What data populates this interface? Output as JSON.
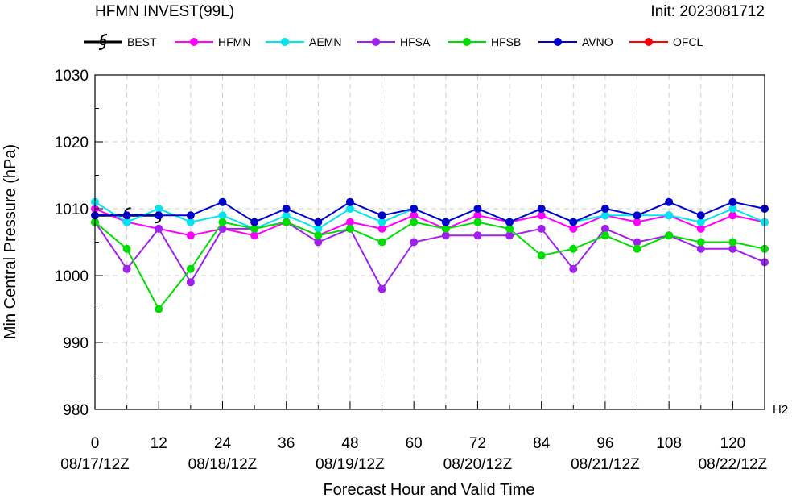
{
  "chart_data": {
    "type": "line",
    "title": "HFMN INVEST(99L)",
    "init_label": "Init: 2023081712",
    "corner_label": "H2",
    "xlabel": "Forecast Hour and Valid Time",
    "ylabel": "Min Central Pressure (hPa)",
    "xlim": [
      0,
      126
    ],
    "ylim": [
      980,
      1030
    ],
    "x_ticks": [
      0,
      12,
      24,
      36,
      48,
      60,
      72,
      84,
      96,
      108,
      120
    ],
    "x_date_labels": [
      {
        "x": 0,
        "label": "08/17/12Z"
      },
      {
        "x": 24,
        "label": "08/18/12Z"
      },
      {
        "x": 48,
        "label": "08/19/12Z"
      },
      {
        "x": 72,
        "label": "08/20/12Z"
      },
      {
        "x": 96,
        "label": "08/21/12Z"
      },
      {
        "x": 120,
        "label": "08/22/12Z"
      }
    ],
    "y_ticks": [
      980,
      990,
      1000,
      1010,
      1020,
      1030
    ],
    "grid": true,
    "legend_position": "top",
    "series": [
      {
        "name": "BEST",
        "color": "#000000",
        "marker": "hurricane-symbol",
        "x": [
          0,
          6,
          12
        ],
        "values": [
          1009,
          1009,
          1009
        ]
      },
      {
        "name": "HFMN",
        "color": "#ff00ff",
        "x": [
          0,
          6,
          12,
          18,
          24,
          30,
          36,
          42,
          48,
          54,
          60,
          66,
          72,
          78,
          84,
          90,
          96,
          102,
          108,
          114,
          120,
          126
        ],
        "values": [
          1010,
          1008,
          1007,
          1006,
          1007,
          1006,
          1008,
          1006,
          1008,
          1007,
          1009,
          1007,
          1009,
          1008,
          1009,
          1007,
          1009,
          1008,
          1009,
          1007,
          1009,
          1008
        ]
      },
      {
        "name": "AEMN",
        "color": "#00e5ee",
        "x": [
          0,
          6,
          12,
          18,
          24,
          30,
          36,
          42,
          48,
          54,
          60,
          66,
          72,
          78,
          84,
          90,
          96,
          102,
          108,
          114,
          120,
          126
        ],
        "values": [
          1011,
          1008,
          1010,
          1008,
          1009,
          1007,
          1009,
          1007,
          1010,
          1008,
          1010,
          1008,
          1010,
          1008,
          1010,
          1008,
          1009,
          1009,
          1009,
          1008,
          1010,
          1008
        ]
      },
      {
        "name": "HFSA",
        "color": "#a020f0",
        "x": [
          0,
          6,
          12,
          18,
          24,
          30,
          36,
          42,
          48,
          54,
          60,
          66,
          72,
          78,
          84,
          90,
          96,
          102,
          108,
          114,
          120,
          126
        ],
        "values": [
          1008,
          1001,
          1007,
          999,
          1007,
          1007,
          1008,
          1005,
          1007,
          998,
          1005,
          1006,
          1006,
          1006,
          1007,
          1001,
          1007,
          1005,
          1006,
          1004,
          1004,
          1002
        ]
      },
      {
        "name": "HFSB",
        "color": "#00dd00",
        "x": [
          0,
          6,
          12,
          18,
          24,
          30,
          36,
          42,
          48,
          54,
          60,
          66,
          72,
          78,
          84,
          90,
          96,
          102,
          108,
          114,
          120,
          126
        ],
        "values": [
          1008,
          1004,
          995,
          1001,
          1008,
          1007,
          1008,
          1006,
          1007,
          1005,
          1008,
          1007,
          1008,
          1007,
          1003,
          1004,
          1006,
          1004,
          1006,
          1005,
          1005,
          1004
        ]
      },
      {
        "name": "AVNO",
        "color": "#0000cd",
        "x": [
          0,
          6,
          12,
          18,
          24,
          30,
          36,
          42,
          48,
          54,
          60,
          66,
          72,
          78,
          84,
          90,
          96,
          102,
          108,
          114,
          120,
          126
        ],
        "values": [
          1009,
          1009,
          1009,
          1009,
          1011,
          1008,
          1010,
          1008,
          1011,
          1009,
          1010,
          1008,
          1010,
          1008,
          1010,
          1008,
          1010,
          1009,
          1011,
          1009,
          1011,
          1010
        ]
      },
      {
        "name": "OFCL",
        "color": "#ff0000",
        "x": [],
        "values": []
      }
    ]
  }
}
